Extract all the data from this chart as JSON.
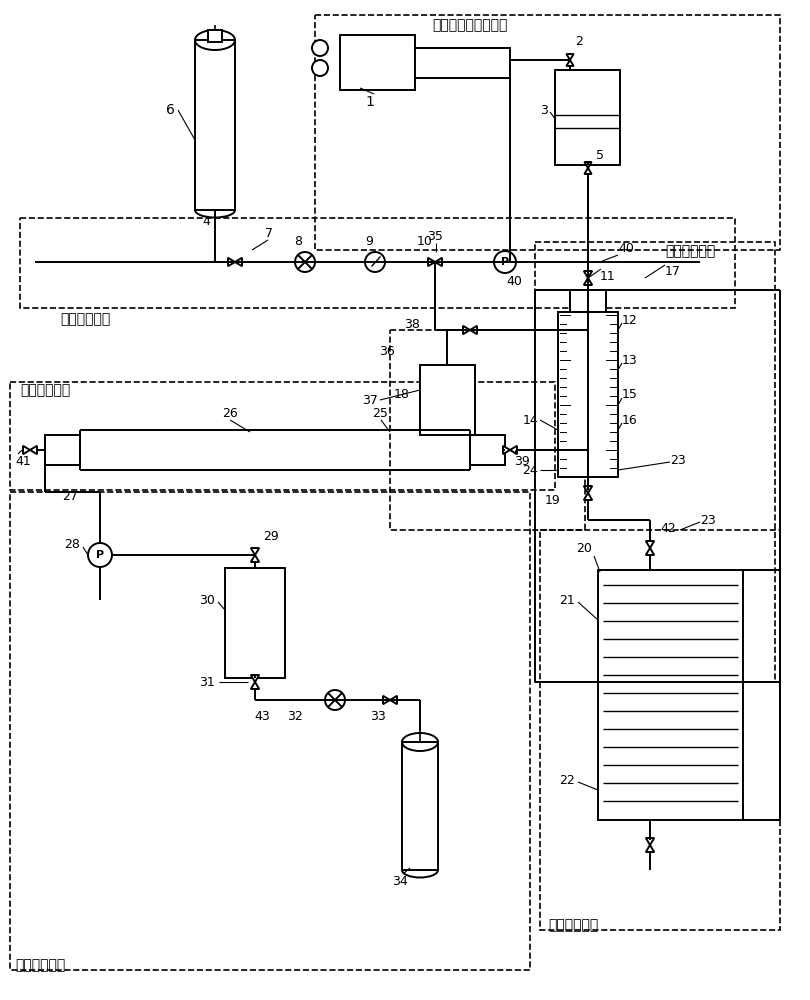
{
  "bg_color": "#ffffff",
  "sections": {
    "fazpao_label": "发泡剂体系注入部分",
    "dan_label": "氮气注入部分",
    "jing_label": "井筒模型部分",
    "you_label": "油藏模拟部分",
    "heng_label": "恒温加热部分",
    "fu_label": "辅助配套部分"
  }
}
